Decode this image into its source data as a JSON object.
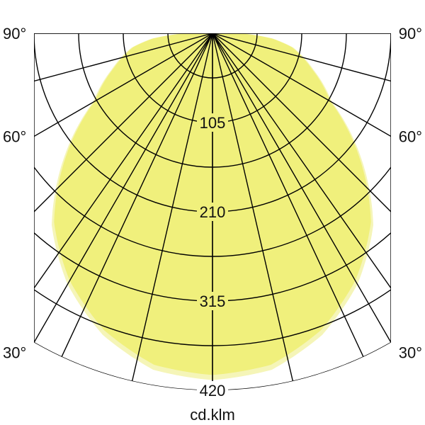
{
  "chart_data": {
    "type": "polar",
    "unit_label": "cd.klm",
    "radial_ticks": [
      105,
      210,
      315,
      420
    ],
    "radial_max": 420,
    "angle_labels": [
      "90°",
      "60°",
      "30°"
    ],
    "angle_label_values": [
      90,
      60,
      30
    ],
    "fill_color": "#f0f07c",
    "halo_color": "#f5f5b8",
    "grid_color": "#000000",
    "symmetric": true,
    "series": [
      {
        "angles_deg": [
          0,
          10,
          20,
          30,
          40,
          50,
          60,
          70,
          80,
          85,
          90
        ],
        "values": [
          402,
          396,
          372,
          336,
          290,
          225,
          160,
          125,
          95,
          70,
          30
        ]
      }
    ]
  }
}
